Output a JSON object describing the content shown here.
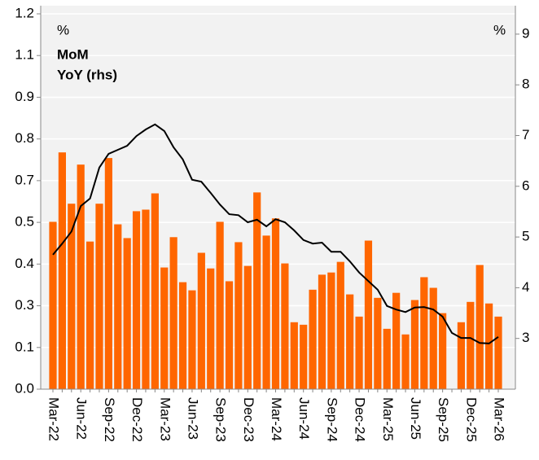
{
  "chart_data": {
    "type": "bar",
    "left_unit": "%",
    "right_unit": "%",
    "categories": [
      "Mar-22",
      null,
      null,
      "Jun-22",
      null,
      null,
      "Sep-22",
      null,
      null,
      "Dec-22",
      null,
      null,
      "Mar-23",
      null,
      null,
      "Jun-23",
      null,
      null,
      "Sep-23",
      null,
      null,
      "Dec-23",
      null,
      null,
      "Mar-24",
      null,
      null,
      "Jun-24",
      null,
      null,
      "Sep-24",
      null,
      null,
      "Dec-24",
      null,
      null,
      "Mar-25",
      null,
      null,
      "Jun-25",
      null,
      null,
      "Sep-25",
      null,
      null,
      "Dec-25",
      null,
      null,
      "Mar-26"
    ],
    "series": [
      {
        "name": "MoM",
        "type": "bar",
        "color": "#ff6600",
        "values": [
          0.535,
          0.757,
          0.593,
          0.718,
          0.472,
          0.593,
          0.739,
          0.527,
          0.483,
          0.569,
          0.574,
          0.626,
          0.389,
          0.486,
          0.342,
          0.316,
          0.436,
          0.386,
          0.535,
          0.345,
          0.47,
          0.394,
          0.629,
          0.491,
          0.546,
          0.402,
          0.214,
          0.206,
          0.318,
          0.366,
          0.373,
          0.407,
          0.303,
          0.232,
          0.475,
          0.292,
          0.193,
          0.308,
          0.175,
          0.285,
          0.358,
          0.324,
          0.243,
          null,
          0.214,
          0.279,
          0.397,
          0.274,
          0.232
        ]
      },
      {
        "name": "YoY (rhs)",
        "type": "line",
        "axis": "y2",
        "color": "#000000",
        "values": [
          4.65,
          4.87,
          5.11,
          5.61,
          5.76,
          6.37,
          6.64,
          6.72,
          6.8,
          6.99,
          7.12,
          7.22,
          7.09,
          6.77,
          6.53,
          6.13,
          6.09,
          5.87,
          5.64,
          5.45,
          5.43,
          5.29,
          5.34,
          5.21,
          5.35,
          5.29,
          5.13,
          4.94,
          4.87,
          4.89,
          4.71,
          4.71,
          4.52,
          4.3,
          4.13,
          3.96,
          3.64,
          3.57,
          3.52,
          3.61,
          3.62,
          3.57,
          3.43,
          3.11,
          3.01,
          3.01,
          2.91,
          2.9,
          3.03
        ]
      }
    ],
    "ylim": [
      0,
      1.2
    ],
    "yticks": [
      {
        "value": 0,
        "label": "0.0"
      },
      {
        "value": 0.1333,
        "label": "0.1"
      },
      {
        "value": 0.2667,
        "label": "0.3"
      },
      0.4,
      {
        "value": 0.5333,
        "label": "0.5"
      },
      {
        "value": 0.6667,
        "label": "0.7"
      },
      0.8,
      {
        "value": 0.9333,
        "label": "0.9"
      },
      {
        "value": 1.0667,
        "label": "1.1"
      },
      1.2
    ],
    "y2lim": [
      2,
      9.4
    ],
    "y2ticks": [
      3,
      4,
      5,
      6,
      7,
      8,
      9
    ],
    "grid": true
  }
}
